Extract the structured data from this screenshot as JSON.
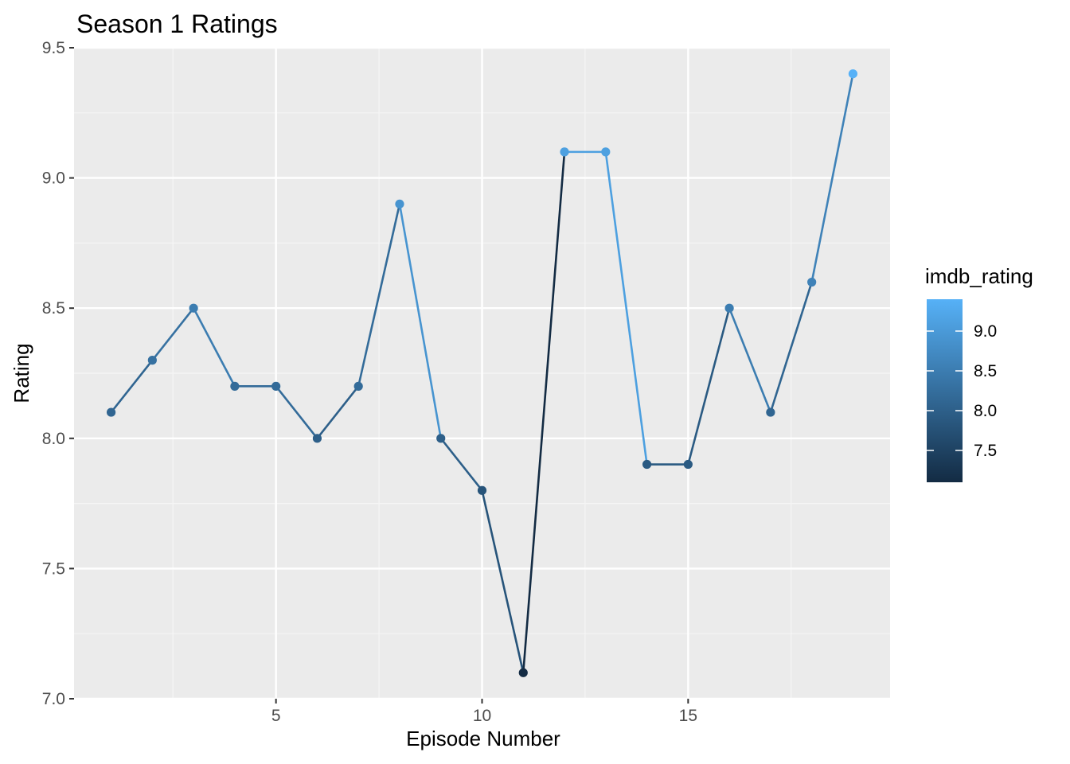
{
  "chart_data": {
    "type": "line",
    "title": "Season 1 Ratings",
    "xlabel": "Episode Number",
    "ylabel": "Rating",
    "xlim": [
      0.1,
      19.9
    ],
    "ylim": [
      7.0,
      9.5
    ],
    "x_ticks": [
      5,
      10,
      15
    ],
    "x_tick_labels": [
      "5",
      "10",
      "15"
    ],
    "y_ticks": [
      7.0,
      7.5,
      8.0,
      8.5,
      9.0,
      9.5
    ],
    "y_tick_labels": [
      "7.0",
      "7.5",
      "8.0",
      "8.5",
      "9.0",
      "9.5"
    ],
    "grid": true,
    "legend": {
      "title": "imdb_rating",
      "placement": "right",
      "type": "colorbar",
      "range": [
        7.1,
        9.4
      ],
      "ticks": [
        7.5,
        8.0,
        8.5,
        9.0
      ],
      "tick_labels": [
        "7.5",
        "8.0",
        "8.5",
        "9.0"
      ],
      "color_low": "#132B43",
      "color_high": "#56B1F7"
    },
    "series": [
      {
        "x": [
          1,
          2,
          3,
          4,
          5,
          6,
          7,
          8,
          9,
          10,
          11,
          12,
          13,
          14,
          15,
          16,
          17,
          18,
          19
        ],
        "y": [
          8.1,
          8.3,
          8.5,
          8.2,
          8.2,
          8.0,
          8.2,
          8.9,
          8.0,
          7.8,
          7.1,
          9.1,
          9.1,
          7.9,
          7.9,
          8.5,
          8.1,
          8.6,
          9.4
        ]
      }
    ],
    "colors": {
      "panel_background": "#EBEBEB",
      "grid_major": "#FFFFFF",
      "grid_minor": "#F5F5F5"
    }
  }
}
